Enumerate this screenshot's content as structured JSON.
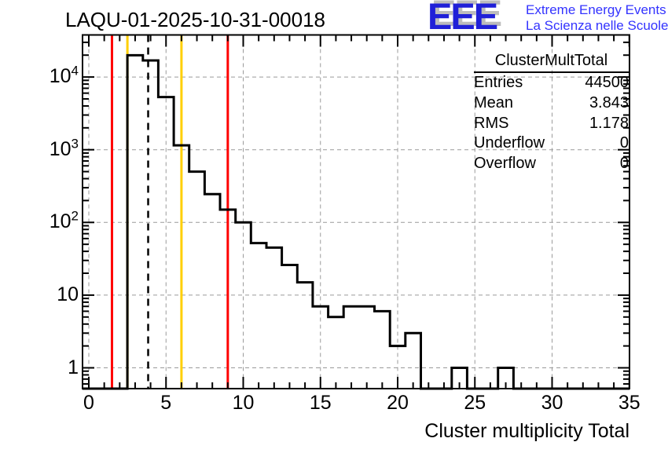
{
  "header": {
    "title": "LAQU-01-2025-10-31-00018"
  },
  "logo": {
    "acronym": "EEE",
    "line1": "Extreme Energy Events",
    "line2": "La Scienza nelle Scuole",
    "acronym_color": "#2020d8",
    "shadow_color": "#bcbcbc",
    "text_color": "#3333ff"
  },
  "stats": {
    "title": "ClusterMultTotal",
    "rows": [
      {
        "label": "Entries",
        "value": "44500"
      },
      {
        "label": "Mean",
        "value": "3.843"
      },
      {
        "label": "RMS",
        "value": "1.178"
      },
      {
        "label": "Underflow",
        "value": "0"
      },
      {
        "label": "Overflow",
        "value": "0"
      }
    ]
  },
  "chart_data": {
    "type": "bar",
    "subtype": "step-histogram-logy",
    "title": "LAQU-01-2025-10-31-00018",
    "xlabel": "Cluster multiplicity Total",
    "ylabel": "",
    "x_range": [
      -0.5,
      35
    ],
    "y_range_log": [
      0.52,
      38500
    ],
    "grid": {
      "on": true,
      "color": "#9a9a9a",
      "x_lines": [
        0,
        5,
        10,
        15,
        20,
        25,
        30,
        35
      ],
      "y_lines": [
        1,
        10,
        100,
        1000,
        10000
      ]
    },
    "x_major_ticks": [
      0,
      5,
      10,
      15,
      20,
      25,
      30,
      35
    ],
    "y_major_ticks": [
      {
        "v": 1,
        "base": "1",
        "exp": ""
      },
      {
        "v": 10,
        "base": "10",
        "exp": ""
      },
      {
        "v": 100,
        "base": "10",
        "exp": "2"
      },
      {
        "v": 1000,
        "base": "10",
        "exp": "3"
      },
      {
        "v": 10000,
        "base": "10",
        "exp": "4"
      }
    ],
    "bins": {
      "first_center": 1,
      "width": 1,
      "centers": [
        1,
        2,
        3,
        4,
        5,
        6,
        7,
        8,
        9,
        10,
        11,
        12,
        13,
        14,
        15,
        16,
        17,
        18,
        19,
        20,
        21,
        22,
        23,
        24,
        25,
        26,
        27,
        28,
        29,
        30,
        31,
        32,
        33,
        34
      ],
      "values": [
        0,
        0,
        19900,
        16900,
        5300,
        1150,
        500,
        245,
        150,
        100,
        52,
        45,
        26,
        15,
        7,
        5,
        7,
        7,
        6,
        2,
        3,
        0,
        0,
        1,
        0,
        0,
        1,
        0,
        0,
        0,
        0,
        0,
        0,
        0
      ]
    },
    "line_color": "#000000",
    "marker_lines": [
      {
        "name": "limit-low-red",
        "x": 1.5,
        "color": "#ff0000",
        "dashed": false
      },
      {
        "name": "limit-low-yellow",
        "x": 2.5,
        "color": "#ffcf00",
        "dashed": false
      },
      {
        "name": "mean-line",
        "x": 3.843,
        "color": "#000000",
        "dashed": true
      },
      {
        "name": "limit-high-yellow",
        "x": 6.0,
        "color": "#ffcf00",
        "dashed": false
      },
      {
        "name": "limit-high-red",
        "x": 9.0,
        "color": "#ff0000",
        "dashed": false
      }
    ]
  }
}
